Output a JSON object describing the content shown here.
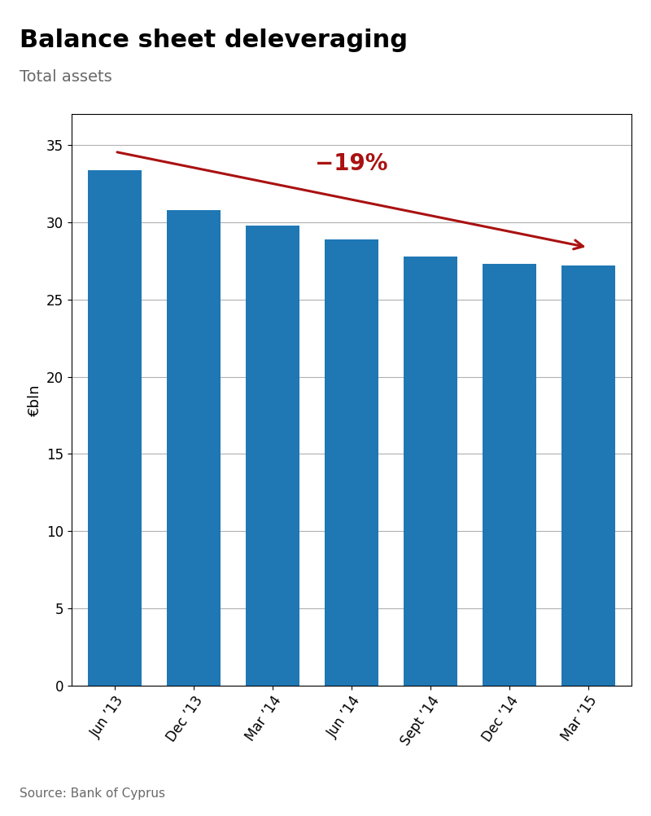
{
  "chart_data": {
    "type": "bar",
    "title": "Balance sheet deleveraging",
    "subtitle": "Total assets",
    "source": "Source: Bank of Cyprus",
    "ylabel": "€bln",
    "categories": [
      "Jun ’13",
      "Dec ’13",
      "Mar ’14",
      "Jun ’14",
      "Sept ’14",
      "Dec ’14",
      "Mar ’15"
    ],
    "values": [
      33.4,
      30.8,
      29.8,
      28.9,
      27.8,
      27.3,
      27.2
    ],
    "ylim": [
      0,
      37
    ],
    "yticks": [
      0,
      5,
      10,
      15,
      20,
      25,
      30,
      35
    ],
    "grid": true,
    "annotations": [
      {
        "text": "−19%",
        "color": "#aa1111"
      }
    ]
  }
}
